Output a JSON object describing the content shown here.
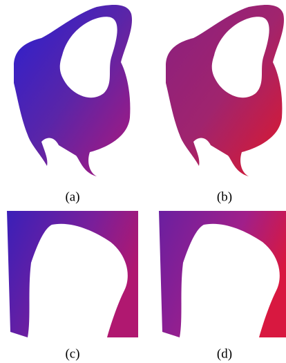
{
  "figures": [
    {
      "label": "(a)"
    },
    {
      "label": "(b)"
    },
    {
      "label": "(c)"
    },
    {
      "label": "(d)"
    }
  ]
}
